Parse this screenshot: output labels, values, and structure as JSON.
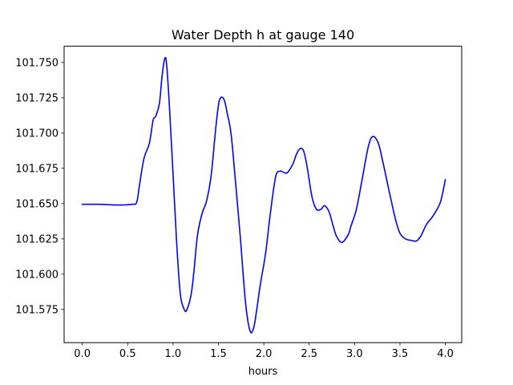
{
  "chart_data": {
    "type": "line",
    "title": "Water Depth h at gauge 140",
    "xlabel": "hours",
    "ylabel": "",
    "xlim": [
      -0.2,
      4.18
    ],
    "ylim": [
      101.5515,
      101.7615
    ],
    "x_ticks": [
      0.0,
      0.5,
      1.0,
      1.5,
      2.0,
      2.5,
      3.0,
      3.5,
      4.0
    ],
    "x_tick_labels": [
      "0.0",
      "0.5",
      "1.0",
      "1.5",
      "2.0",
      "2.5",
      "3.0",
      "3.5",
      "4.0"
    ],
    "y_ticks": [
      101.575,
      101.6,
      101.625,
      101.65,
      101.675,
      101.7,
      101.725,
      101.75
    ],
    "y_tick_labels": [
      "101.575",
      "101.600",
      "101.625",
      "101.650",
      "101.675",
      "101.700",
      "101.725",
      "101.750"
    ],
    "grid": false,
    "series": [
      {
        "color": "#0000ff",
        "x": [
          0.0,
          0.2,
          0.4,
          0.55,
          0.6,
          0.63,
          0.68,
          0.74,
          0.78,
          0.81,
          0.85,
          0.88,
          0.91,
          0.93,
          0.96,
          1.0,
          1.04,
          1.08,
          1.12,
          1.15,
          1.2,
          1.23,
          1.27,
          1.32,
          1.37,
          1.42,
          1.47,
          1.51,
          1.56,
          1.6,
          1.64,
          1.69,
          1.74,
          1.8,
          1.85,
          1.89,
          1.92,
          1.96,
          2.02,
          2.07,
          2.13,
          2.18,
          2.22,
          2.26,
          2.32,
          2.36,
          2.4,
          2.44,
          2.48,
          2.53,
          2.58,
          2.63,
          2.67,
          2.72,
          2.76,
          2.8,
          2.86,
          2.93,
          2.96,
          3.02,
          3.08,
          3.15,
          3.2,
          3.26,
          3.31,
          3.38,
          3.45,
          3.5,
          3.56,
          3.62,
          3.68,
          3.73,
          3.79,
          3.85,
          3.9,
          3.95,
          4.0
        ],
        "y": [
          101.6495,
          101.6495,
          101.649,
          101.6495,
          101.651,
          101.663,
          101.682,
          101.693,
          101.709,
          101.712,
          101.721,
          101.741,
          101.753,
          101.748,
          101.719,
          101.671,
          101.622,
          101.586,
          101.5755,
          101.5745,
          101.586,
          101.602,
          101.628,
          101.643,
          101.652,
          101.67,
          101.703,
          101.723,
          101.724,
          101.713,
          101.699,
          101.664,
          101.627,
          101.579,
          101.5595,
          101.5625,
          101.574,
          101.592,
          101.615,
          101.642,
          101.669,
          101.673,
          101.672,
          101.672,
          101.678,
          101.685,
          101.689,
          101.687,
          101.675,
          101.655,
          101.646,
          101.646,
          101.6485,
          101.644,
          101.635,
          101.627,
          101.6225,
          101.628,
          101.634,
          101.646,
          101.666,
          101.69,
          101.6975,
          101.693,
          101.68,
          101.659,
          101.639,
          101.629,
          101.625,
          101.624,
          101.6235,
          101.627,
          101.635,
          101.64,
          101.645,
          101.652,
          101.667
        ]
      }
    ]
  }
}
